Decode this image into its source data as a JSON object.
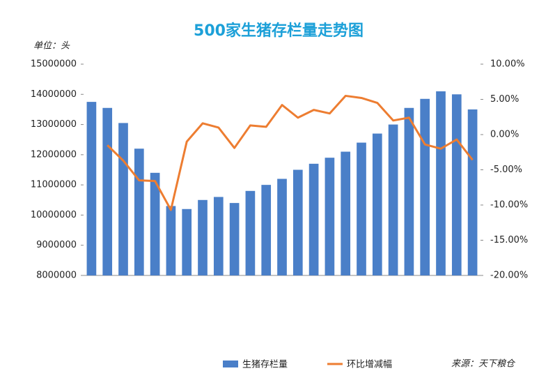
{
  "chart_data": {
    "type": "bar_line",
    "title": "500家生猪存栏量走势图",
    "unit": "单位：头",
    "source": "来源：天下粮仓",
    "categories": [
      null,
      null,
      null,
      null,
      null,
      null,
      null,
      null,
      null,
      null,
      null,
      null,
      null,
      null,
      null,
      null,
      null,
      null,
      null,
      null,
      null,
      null,
      null,
      null,
      null
    ],
    "series": [
      {
        "name": "生猪存栏量",
        "color": "#4a7fc8",
        "type": "bar",
        "values": [
          13750000,
          13550000,
          13050000,
          12200000,
          11400000,
          10300000,
          10200000,
          10500000,
          10600000,
          10400000,
          10800000,
          11000000,
          11200000,
          11500000,
          11700000,
          11900000,
          12100000,
          12400000,
          12700000,
          13000000,
          13550000,
          13850000,
          14100000,
          14000000,
          13500000
        ]
      },
      {
        "name": "环比增减幅",
        "color": "#ed7d31",
        "type": "line",
        "axis": "y2",
        "values": [
          null,
          -1.5,
          -3.7,
          -6.5,
          -6.6,
          -10.7,
          -1.0,
          1.6,
          1.0,
          -1.9,
          1.3,
          1.1,
          4.2,
          2.4,
          3.5,
          3.0,
          5.5,
          5.2,
          4.5,
          2.0,
          2.4,
          -1.4,
          -2.0,
          -0.7,
          -3.6
        ]
      }
    ],
    "ylim": [
      8000000,
      15000000
    ],
    "yticks": [
      8000000,
      9000000,
      10000000,
      11000000,
      12000000,
      13000000,
      14000000,
      15000000
    ],
    "y2lim": [
      -20,
      10
    ],
    "y2ticks": [
      {
        "value": -20,
        "label": "-20.00%"
      },
      {
        "value": -15,
        "label": "-15.00%"
      },
      {
        "value": -10,
        "label": "-10.00%"
      },
      {
        "value": -5,
        "label": "-5.00%"
      },
      {
        "value": 0,
        "label": "0.00%"
      },
      {
        "value": 5,
        "label": "5.00%"
      },
      {
        "value": 10,
        "label": "10.00%"
      }
    ],
    "grid": false
  }
}
